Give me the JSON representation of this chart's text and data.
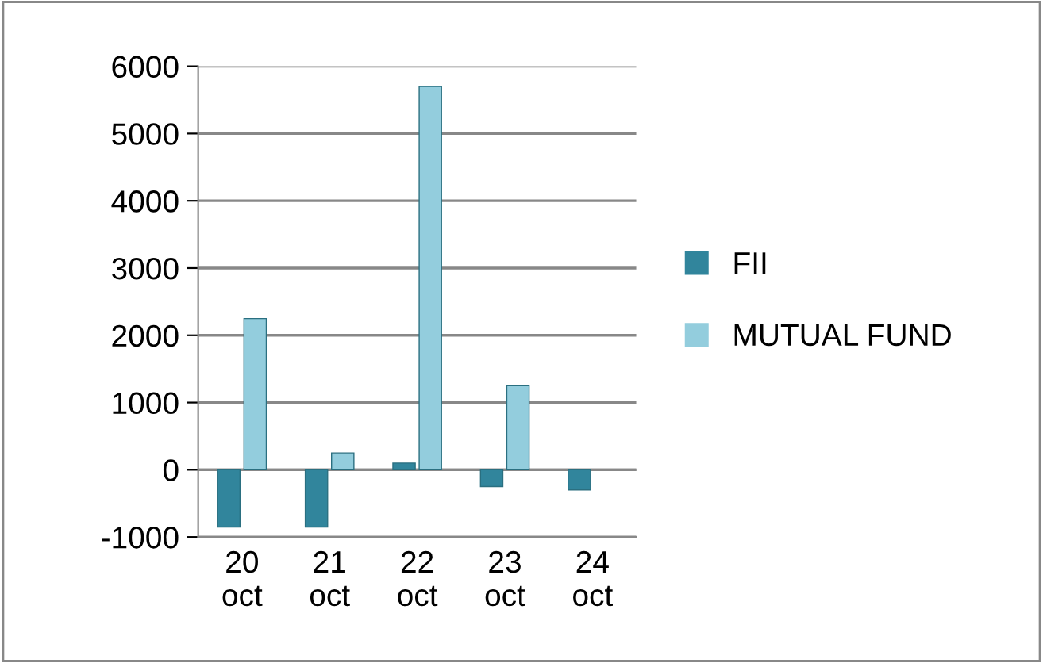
{
  "chart_data": {
    "type": "bar",
    "categories": [
      "20\noct",
      "21\noct",
      "22\noct",
      "23\noct",
      "24\noct"
    ],
    "series": [
      {
        "name": "FII",
        "color": "#31859c",
        "values": [
          -850,
          -850,
          100,
          -250,
          -300
        ]
      },
      {
        "name": "MUTUAL FUND",
        "color": "#93cddd",
        "values": [
          2250,
          250,
          5700,
          1250,
          null
        ]
      }
    ],
    "ylim": [
      -1000,
      6000
    ],
    "yticks": [
      -1000,
      0,
      1000,
      2000,
      3000,
      4000,
      5000,
      6000
    ],
    "grid": "y",
    "legend": "right"
  }
}
